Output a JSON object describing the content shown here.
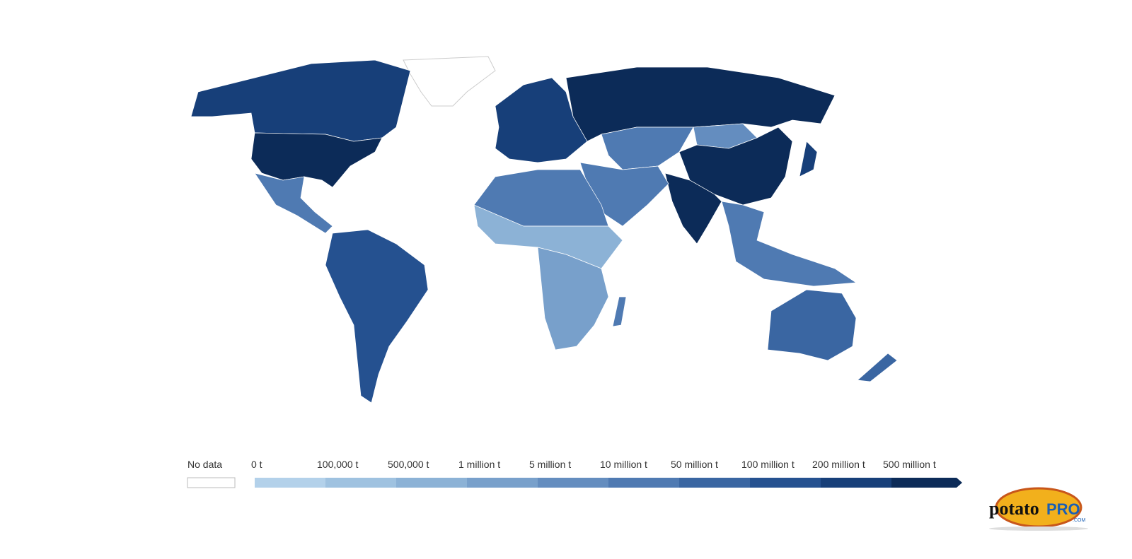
{
  "map": {
    "legend": {
      "no_data": {
        "label": "No data",
        "color": "#ffffff"
      },
      "bins": [
        {
          "label": "0 t",
          "color": "#b3d1ea"
        },
        {
          "label": "100,000 t",
          "color": "#9fc2e0"
        },
        {
          "label": "500,000 t",
          "color": "#8cb2d6"
        },
        {
          "label": "1 million t",
          "color": "#78a0cb"
        },
        {
          "label": "5 million t",
          "color": "#648dbf"
        },
        {
          "label": "10 million t",
          "color": "#4f7ab2"
        },
        {
          "label": "50 million t",
          "color": "#3a66a2"
        },
        {
          "label": "100 million t",
          "color": "#255190"
        },
        {
          "label": "200 million t",
          "color": "#173f79"
        },
        {
          "label": "500 million t",
          "color": "#0c2b58"
        }
      ]
    },
    "logo": {
      "word": "potato",
      "brand": "PRO",
      "domain": ".COM"
    }
  }
}
